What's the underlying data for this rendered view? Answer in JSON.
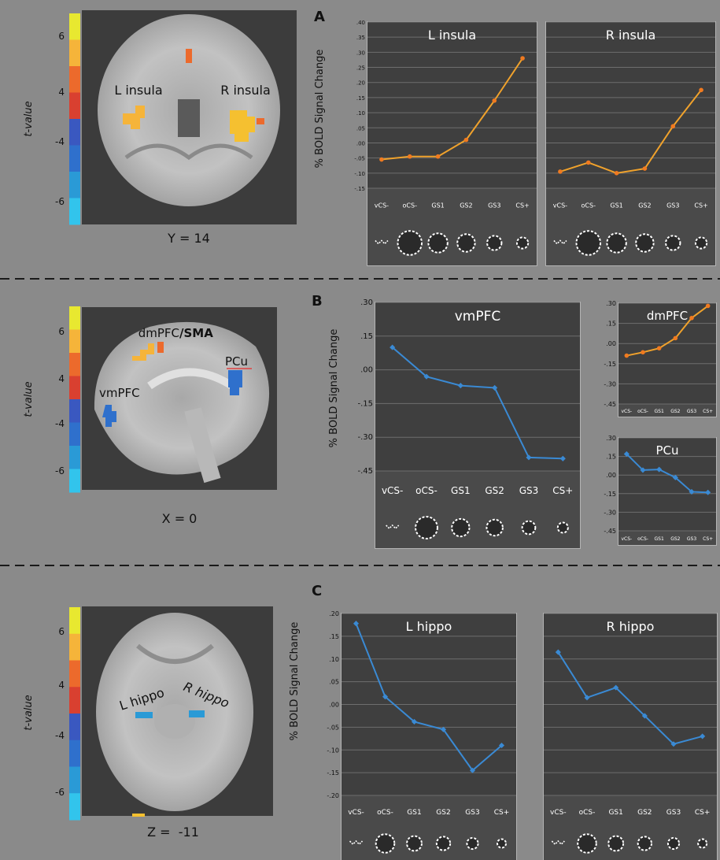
{
  "panels": [
    {
      "letter": "A",
      "slice_label": "Y = 14",
      "brain_labels": [
        "L insula",
        "R insula"
      ]
    },
    {
      "letter": "B",
      "slice_label": "X = 0",
      "brain_labels": [
        "dmPFC",
        "/SMA",
        "PCu",
        "vmPFC"
      ]
    },
    {
      "letter": "C",
      "slice_label": "Z =  -11",
      "brain_labels": [
        "L hippo",
        "R hippo"
      ]
    }
  ],
  "colorbar": {
    "axis_label": "t-value",
    "ticks": [
      "6",
      "4",
      "-4",
      "-6"
    ],
    "colors": [
      "#e8e830",
      "#f5b43a",
      "#ec6a2c",
      "#d94030",
      "#3a58c0",
      "#2f70cc",
      "#2a9ad6",
      "#32c4ec"
    ]
  },
  "ylabel": "% BOLD Signal Change",
  "stimulus_glyph_count": 6,
  "chart_data": [
    {
      "type": "line",
      "title": "L insula",
      "panel": "A",
      "series_color": "#f0a22c",
      "categories": [
        "vCS-",
        "oCS-",
        "GS1",
        "GS2",
        "GS3",
        "CS+"
      ],
      "values": [
        -0.055,
        -0.045,
        -0.045,
        0.01,
        0.14,
        0.28
      ],
      "ylim": [
        -0.15,
        0.4
      ],
      "yticks": [
        ".40",
        ".35",
        ".30",
        ".25",
        ".20",
        ".15",
        ".10",
        ".05",
        ".00",
        "-.05",
        "-.10",
        "-.15"
      ]
    },
    {
      "type": "line",
      "title": "R insula",
      "panel": "A",
      "series_color": "#f0a22c",
      "categories": [
        "vCS-",
        "oCS-",
        "GS1",
        "GS2",
        "GS3",
        "CS+"
      ],
      "values": [
        -0.095,
        -0.065,
        -0.1,
        -0.085,
        0.055,
        0.175
      ],
      "ylim": [
        -0.15,
        0.4
      ],
      "yticks": []
    },
    {
      "type": "line",
      "title": "vmPFC",
      "panel": "B",
      "series_color": "#3a8ad4",
      "categories": [
        "vCS-",
        "oCS-",
        "GS1",
        "GS2",
        "GS3",
        "CS+"
      ],
      "values": [
        0.1,
        -0.03,
        -0.07,
        -0.08,
        -0.39,
        -0.395
      ],
      "ylim": [
        -0.45,
        0.3
      ],
      "yticks": [
        ".30",
        ".15",
        ".00",
        "-.15",
        "-.30",
        "-.45"
      ]
    },
    {
      "type": "line",
      "title": "dmPFC",
      "panel": "B",
      "series_color": "#f0a22c",
      "categories": [
        "vCS-",
        "oCS-",
        "GS1",
        "GS2",
        "GS3",
        "CS+"
      ],
      "values": [
        -0.09,
        -0.065,
        -0.035,
        0.04,
        0.19,
        0.28
      ],
      "ylim": [
        -0.45,
        0.3
      ],
      "yticks": [
        ".30",
        ".15",
        ".00",
        "-.15",
        "-.30",
        "-.45"
      ]
    },
    {
      "type": "line",
      "title": "PCu",
      "panel": "B",
      "series_color": "#3a8ad4",
      "categories": [
        "vCS-",
        "oCS-",
        "GS1",
        "GS2",
        "GS3",
        "CS+"
      ],
      "values": [
        0.17,
        0.04,
        0.045,
        -0.02,
        -0.135,
        -0.14
      ],
      "ylim": [
        -0.45,
        0.3
      ],
      "yticks": [
        ".30",
        ".15",
        ".00",
        "-.15",
        "-.30",
        "-.45"
      ]
    },
    {
      "type": "line",
      "title": "L hippo",
      "panel": "C",
      "series_color": "#3a8ad4",
      "categories": [
        "vCS-",
        "oCS-",
        "GS1",
        "GS2",
        "GS3",
        "CS+"
      ],
      "values": [
        0.178,
        0.017,
        -0.038,
        -0.055,
        -0.145,
        -0.09
      ],
      "ylim": [
        -0.2,
        0.2
      ],
      "yticks": [
        ".20",
        ".15",
        ".10",
        ".05",
        ".00",
        "-.05",
        "-.10",
        "-.15",
        "-.20"
      ]
    },
    {
      "type": "line",
      "title": "R hippo",
      "panel": "C",
      "series_color": "#3a8ad4",
      "categories": [
        "vCS-",
        "oCS-",
        "GS1",
        "GS2",
        "GS3",
        "CS+"
      ],
      "values": [
        0.115,
        0.015,
        0.037,
        -0.025,
        -0.087,
        -0.07
      ],
      "ylim": [
        -0.2,
        0.2
      ],
      "yticks": []
    }
  ]
}
